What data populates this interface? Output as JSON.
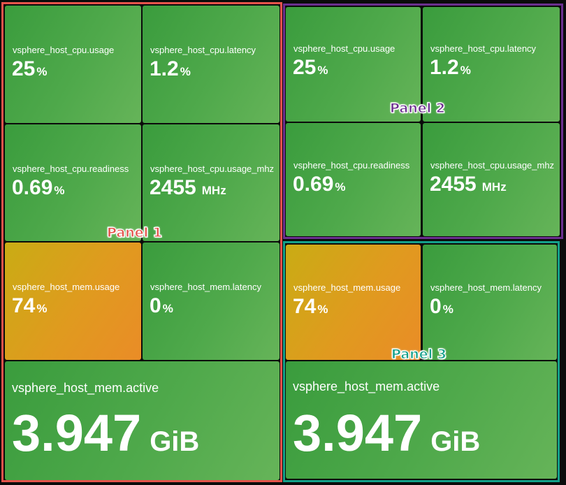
{
  "panels": [
    {
      "label": "Panel 1",
      "color": "#e5534b",
      "tiles": [
        {
          "metric": "vsphere_host_cpu.usage",
          "value": "25",
          "unit": "%",
          "state": "ok"
        },
        {
          "metric": "vsphere_host_cpu.latency",
          "value": "1.2",
          "unit": "%",
          "state": "ok"
        },
        {
          "metric": "vsphere_host_cpu.readiness",
          "value": "0.69",
          "unit": "%",
          "state": "ok"
        },
        {
          "metric": "vsphere_host_cpu.usage_mhz",
          "value": "2455",
          "unit": "MHz",
          "state": "ok"
        },
        {
          "metric": "vsphere_host_mem.usage",
          "value": "74",
          "unit": "%",
          "state": "warning"
        },
        {
          "metric": "vsphere_host_mem.latency",
          "value": "0",
          "unit": "%",
          "state": "ok"
        },
        {
          "metric": "vsphere_host_mem.active",
          "value": "3.947",
          "unit": "GiB",
          "state": "ok"
        }
      ]
    },
    {
      "label": "Panel 2",
      "color": "#6b2f8f",
      "tiles": [
        {
          "metric": "vsphere_host_cpu.usage",
          "value": "25",
          "unit": "%",
          "state": "ok"
        },
        {
          "metric": "vsphere_host_cpu.latency",
          "value": "1.2",
          "unit": "%",
          "state": "ok"
        },
        {
          "metric": "vsphere_host_cpu.readiness",
          "value": "0.69",
          "unit": "%",
          "state": "ok"
        },
        {
          "metric": "vsphere_host_cpu.usage_mhz",
          "value": "2455",
          "unit": "MHz",
          "state": "ok"
        }
      ]
    },
    {
      "label": "Panel 3",
      "color": "#13a08a",
      "tiles": [
        {
          "metric": "vsphere_host_mem.usage",
          "value": "74",
          "unit": "%",
          "state": "warning"
        },
        {
          "metric": "vsphere_host_mem.latency",
          "value": "0",
          "unit": "%",
          "state": "ok"
        },
        {
          "metric": "vsphere_host_mem.active",
          "value": "3.947",
          "unit": "GiB",
          "state": "ok"
        }
      ]
    }
  ],
  "colors": {
    "ok": "#4fa94b",
    "warning": "#e09a1f"
  }
}
